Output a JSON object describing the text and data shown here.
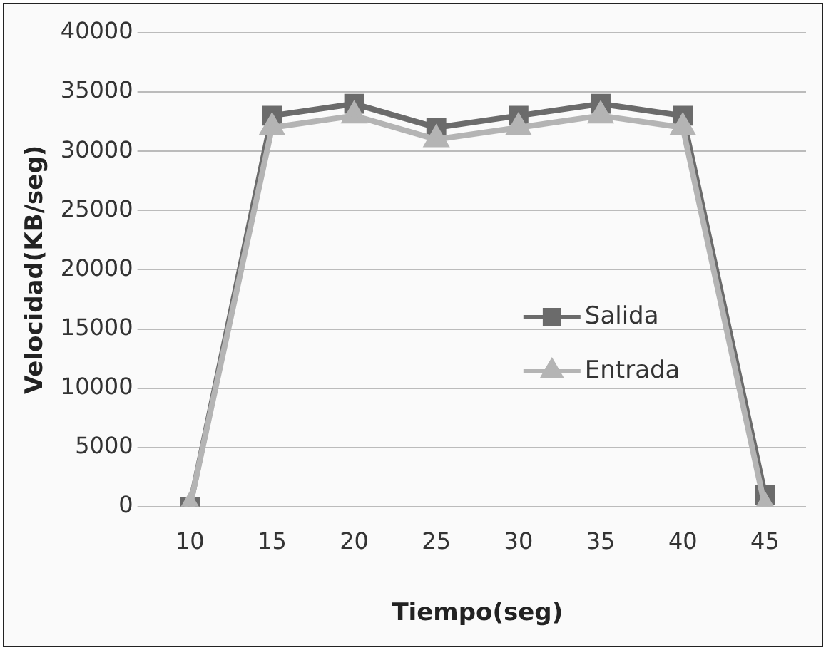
{
  "chart_data": {
    "type": "line",
    "xlabel": "Tiempo(seg)",
    "ylabel": "Velocidad(KB/seg)",
    "categories": [
      "10",
      "15",
      "20",
      "25",
      "30",
      "35",
      "40",
      "45"
    ],
    "series": [
      {
        "name": "Salida",
        "color": "#6b6b6b",
        "marker": "square",
        "values": [
          0,
          33000,
          34000,
          32000,
          33000,
          34000,
          33000,
          1000
        ]
      },
      {
        "name": "Entrada",
        "color": "#b4b4b4",
        "marker": "triangle",
        "values": [
          0,
          32000,
          33000,
          31000,
          32000,
          33000,
          32000,
          0
        ]
      }
    ],
    "ylim": [
      0,
      40000
    ],
    "yticks": [
      0,
      5000,
      10000,
      15000,
      20000,
      25000,
      30000,
      35000,
      40000
    ],
    "grid": "y",
    "legend": "right"
  }
}
